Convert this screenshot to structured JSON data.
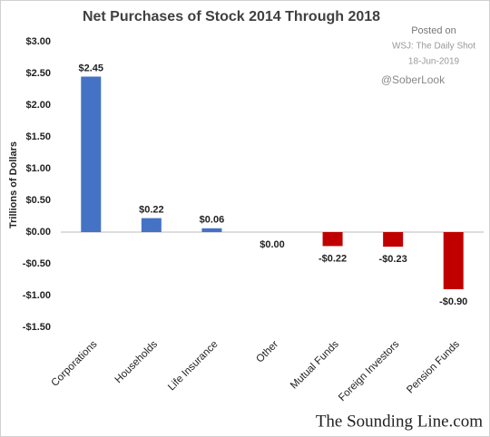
{
  "chart_data": {
    "type": "bar",
    "title": "Net Purchases of Stock 2014 Through 2018",
    "y_label": "Trillions of Dollars",
    "categories": [
      "Corporations",
      "Households",
      "Life Insurance",
      "Other",
      "Mutual Funds",
      "Foreign Investors",
      "Pension Funds"
    ],
    "values": [
      2.45,
      0.22,
      0.06,
      0.0,
      -0.22,
      -0.23,
      -0.9
    ],
    "value_labels": [
      "$2.45",
      "$0.22",
      "$0.06",
      "$0.00",
      "-$0.22",
      "-$0.23",
      "-$0.90"
    ],
    "colors": [
      "#4472c4",
      "#4472c4",
      "#4472c4",
      "#4472c4",
      "#c00000",
      "#c00000",
      "#c00000"
    ],
    "ylim": [
      -1.5,
      3.0
    ],
    "yticks": [
      {
        "value": -1.5,
        "label": "-$1.50"
      },
      {
        "value": -1.0,
        "label": "-$1.00"
      },
      {
        "value": -0.5,
        "label": "-$0.50"
      },
      {
        "value": 0,
        "label": "$0.00"
      },
      {
        "value": 0.5,
        "label": "$0.50"
      },
      {
        "value": 1.0,
        "label": "$1.00"
      },
      {
        "value": 1.5,
        "label": "$1.50"
      },
      {
        "value": 2.0,
        "label": "$2.00"
      },
      {
        "value": 2.5,
        "label": "$2.50"
      },
      {
        "value": 3.0,
        "label": "$3.00"
      }
    ],
    "grid": false,
    "annotations": [
      "Posted on",
      "WSJ: The Daily Shot",
      "18-Jun-2019",
      "@SoberLook",
      "The Sounding Line.com"
    ]
  }
}
